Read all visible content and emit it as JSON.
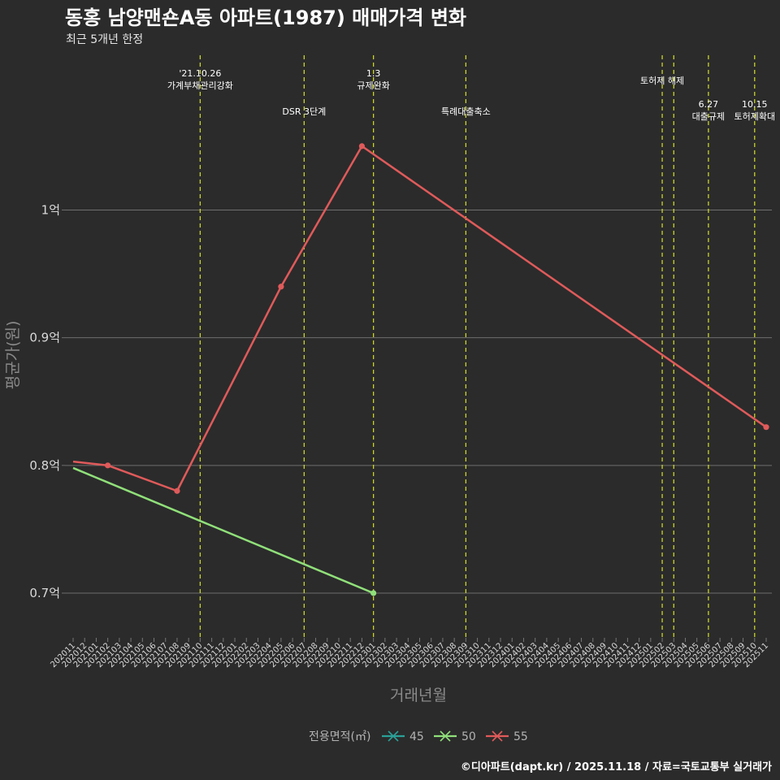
{
  "chart_data": {
    "type": "line",
    "title": "동홍 남양맨숀A동 아파트(1987) 매매가격 변화",
    "subtitle": "최근 5개년 한정",
    "xlabel": "거래년월",
    "ylabel": "평균가(원)",
    "ylim": [
      0.665,
      1.125
    ],
    "yticks": [
      {
        "value": 0.7,
        "label": "0.7억"
      },
      {
        "value": 0.8,
        "label": "0.8억"
      },
      {
        "value": 0.9,
        "label": "0.9억"
      },
      {
        "value": 1.0,
        "label": "1억"
      }
    ],
    "x_categories": [
      "202011",
      "202012",
      "202101",
      "202102",
      "202103",
      "202104",
      "202105",
      "202106",
      "202107",
      "202108",
      "202109",
      "202110",
      "202111",
      "202112",
      "202201",
      "202202",
      "202203",
      "202204",
      "202205",
      "202206",
      "202207",
      "202208",
      "202209",
      "202210",
      "202211",
      "202212",
      "202301",
      "202302",
      "202303",
      "202304",
      "202305",
      "202306",
      "202307",
      "202308",
      "202309",
      "202310",
      "202311",
      "202312",
      "202401",
      "202402",
      "202403",
      "202404",
      "202405",
      "202406",
      "202407",
      "202408",
      "202409",
      "202410",
      "202411",
      "202412",
      "202501",
      "202502",
      "202503",
      "202504",
      "202505",
      "202506",
      "202507",
      "202508",
      "202509",
      "202510",
      "202511"
    ],
    "series": [
      {
        "name": "45",
        "color": "#2aa198",
        "points": []
      },
      {
        "name": "50",
        "color": "#90e07a",
        "points": [
          {
            "x": "202011",
            "y": 0.798,
            "marker": false
          },
          {
            "x": "202301",
            "y": 0.7,
            "marker": true
          }
        ]
      },
      {
        "name": "55",
        "color": "#e05a5a",
        "points": [
          {
            "x": "202011",
            "y": 0.803,
            "marker": false
          },
          {
            "x": "202102",
            "y": 0.8,
            "marker": true
          },
          {
            "x": "202108",
            "y": 0.78,
            "marker": true
          },
          {
            "x": "202205",
            "y": 0.94,
            "marker": true
          },
          {
            "x": "202212",
            "y": 1.05,
            "marker": true
          },
          {
            "x": "202511",
            "y": 0.83,
            "marker": true
          }
        ]
      }
    ],
    "events": [
      {
        "x": "202110",
        "lines": [
          "'21.10.26",
          "가계부채관리강화"
        ],
        "tier": "high"
      },
      {
        "x": "202207",
        "lines": [
          "DSR 3단계"
        ],
        "tier": "low"
      },
      {
        "x": "202301",
        "lines": [
          "1.3",
          "규제완화"
        ],
        "tier": "high"
      },
      {
        "x": "202309",
        "lines": [
          "특례대출축소"
        ],
        "tier": "low"
      },
      {
        "x": "202502",
        "lines": [
          "토허제 해제"
        ],
        "tier": "mid"
      },
      {
        "x": "202503",
        "lines": [],
        "tier": "none"
      },
      {
        "x": "202506",
        "lines": [
          "6.27",
          "대출규제"
        ],
        "tier": "low2"
      },
      {
        "x": "202510",
        "lines": [
          "10.15",
          "토허제확대"
        ],
        "tier": "low2"
      }
    ],
    "legend": {
      "title": "전용면적(㎡)",
      "position": "bottom"
    },
    "caption": "©디아파트(dapt.kr) / 2025.11.18 / 자료=국토교통부 실거래가"
  }
}
